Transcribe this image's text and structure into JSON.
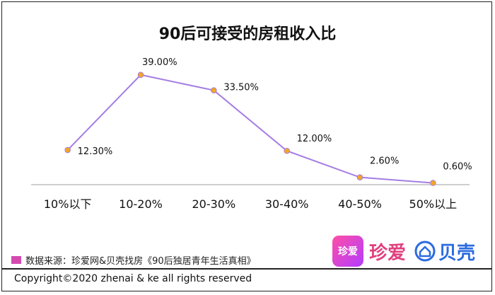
{
  "chart_data": {
    "type": "line",
    "title": "90后可接受的房租收入比",
    "categories": [
      "10%以下",
      "10-20%",
      "20-30%",
      "30-40%",
      "40-50%",
      "50%以上"
    ],
    "series": [
      {
        "values": [
          12.3,
          39.0,
          33.5,
          12.0,
          2.6,
          0.6
        ]
      }
    ],
    "data_labels": [
      "12.30%",
      "39.00%",
      "33.50%",
      "12.00%",
      "2.60%",
      "0.60%"
    ],
    "ylim": [
      0,
      50
    ],
    "grid": false,
    "colors": {
      "line": "#a57de3",
      "marker_fill": "#f5a623",
      "marker_edge": "#a57de3",
      "axis": "#bfbfbf"
    }
  },
  "source": {
    "text": "数据来源：珍爱网&贝壳找房《90后独居青年生活真相》",
    "swatch_color": "#d44ab0"
  },
  "logos": {
    "zhenai_badge": "珍爱",
    "zhenai_name": "珍爱",
    "ke_name": "贝壳",
    "ke_icon": "house-icon"
  },
  "footer": {
    "copyright": "Copyright©2020 zhenai & ke all rights reserved"
  }
}
